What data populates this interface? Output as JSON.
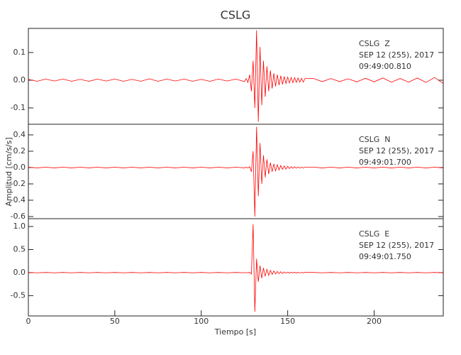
{
  "chart_data": [
    {
      "type": "line",
      "title": "CSLG",
      "color": "#ff0000",
      "annotations": [
        "CSLG  Z",
        "SEP 12 (255), 2017",
        "09:49:00.810"
      ],
      "xlim": [
        0,
        240
      ],
      "ylim": [
        -0.159,
        0.187
      ],
      "yticks": [
        -0.1,
        {
          "value": 0.0,
          "label": "0.0"
        },
        0.1
      ],
      "x": [
        0,
        5,
        10,
        15,
        20,
        25,
        30,
        35,
        40,
        45,
        50,
        55,
        60,
        65,
        70,
        75,
        80,
        85,
        90,
        95,
        100,
        105,
        110,
        115,
        120,
        125,
        126,
        127,
        128,
        129,
        130,
        131,
        132,
        133,
        134,
        135,
        136,
        137,
        138,
        139,
        140,
        141,
        142,
        143,
        144,
        145,
        146,
        147,
        148,
        149,
        150,
        151,
        152,
        153,
        154,
        155,
        156,
        157,
        158,
        159,
        160,
        165,
        170,
        175,
        180,
        185,
        190,
        195,
        200,
        205,
        210,
        215,
        220,
        225,
        230,
        235,
        240
      ],
      "values": [
        0.003,
        -0.004,
        0.004,
        -0.003,
        0.004,
        -0.004,
        0.003,
        -0.004,
        0.004,
        -0.003,
        0.004,
        -0.004,
        0.003,
        -0.004,
        0.005,
        -0.004,
        0.004,
        -0.003,
        0.004,
        -0.004,
        0.003,
        -0.004,
        0.004,
        -0.003,
        0.004,
        -0.005,
        0.006,
        -0.008,
        0.02,
        -0.04,
        0.07,
        -0.1,
        0.18,
        -0.15,
        0.12,
        -0.09,
        0.07,
        -0.06,
        0.05,
        -0.04,
        0.035,
        -0.03,
        0.025,
        -0.022,
        0.02,
        -0.018,
        0.016,
        -0.015,
        0.013,
        -0.012,
        0.011,
        -0.01,
        0.01,
        -0.009,
        0.009,
        -0.008,
        0.008,
        -0.007,
        0.007,
        -0.007,
        0.006,
        0.006,
        -0.005,
        0.006,
        -0.005,
        0.005,
        -0.006,
        0.007,
        -0.006,
        0.008,
        -0.007,
        0.006,
        -0.007,
        0.008,
        -0.008,
        0.01,
        -0.012
      ]
    },
    {
      "type": "line",
      "y_label": "Amplitud [cm/s/s]",
      "color": "#ff0000",
      "annotations": [
        "CSLG  N",
        "SEP 12 (255), 2017",
        "09:49:01.700"
      ],
      "xlim": [
        0,
        240
      ],
      "ylim": [
        -0.626,
        0.53
      ],
      "yticks": [
        -0.6,
        -0.4,
        -0.2,
        {
          "value": 0.0,
          "label": "0.0"
        },
        0.2,
        0.4
      ],
      "x": [
        0,
        5,
        10,
        15,
        20,
        25,
        30,
        35,
        40,
        45,
        50,
        55,
        60,
        65,
        70,
        75,
        80,
        85,
        90,
        95,
        100,
        105,
        110,
        115,
        120,
        125,
        126,
        127,
        128,
        129,
        130,
        131,
        132,
        133,
        134,
        135,
        136,
        137,
        138,
        139,
        140,
        141,
        142,
        143,
        144,
        145,
        146,
        147,
        148,
        149,
        150,
        151,
        152,
        153,
        154,
        155,
        156,
        157,
        158,
        159,
        160,
        165,
        170,
        175,
        180,
        185,
        190,
        195,
        200,
        205,
        210,
        215,
        220,
        225,
        230,
        235,
        240
      ],
      "values": [
        0.004,
        -0.004,
        0.004,
        -0.004,
        0.004,
        -0.004,
        0.004,
        -0.004,
        0.004,
        -0.004,
        0.004,
        -0.004,
        0.004,
        -0.004,
        0.004,
        -0.004,
        0.004,
        -0.004,
        0.004,
        -0.004,
        0.004,
        -0.004,
        0.004,
        -0.004,
        0.004,
        -0.004,
        0.005,
        -0.006,
        0.01,
        -0.05,
        0.2,
        -0.6,
        0.5,
        -0.35,
        0.3,
        -0.2,
        0.15,
        -0.12,
        0.1,
        -0.08,
        0.06,
        -0.05,
        0.045,
        -0.04,
        0.035,
        -0.03,
        0.025,
        -0.022,
        0.02,
        -0.018,
        0.015,
        -0.013,
        0.012,
        -0.01,
        0.009,
        -0.008,
        0.008,
        -0.007,
        0.006,
        -0.006,
        0.005,
        0.005,
        -0.005,
        0.005,
        -0.005,
        0.005,
        -0.005,
        0.005,
        -0.005,
        0.005,
        -0.005,
        0.005,
        -0.005,
        0.005,
        -0.005,
        0.005,
        -0.005
      ]
    },
    {
      "type": "line",
      "x_label": "Tiempo [s]",
      "color": "#ff0000",
      "annotations": [
        "CSLG  E",
        "SEP 12 (255), 2017",
        "09:49:01.750"
      ],
      "xlim": [
        0,
        240
      ],
      "ylim": [
        -0.94,
        1.17
      ],
      "xticks": [
        0,
        50,
        100,
        150,
        200
      ],
      "yticks": [
        -0.5,
        {
          "value": 0.0,
          "label": "0.0"
        },
        0.5,
        {
          "value": 1.0,
          "label": "1.0"
        }
      ],
      "x": [
        0,
        5,
        10,
        15,
        20,
        25,
        30,
        35,
        40,
        45,
        50,
        55,
        60,
        65,
        70,
        75,
        80,
        85,
        90,
        95,
        100,
        105,
        110,
        115,
        120,
        125,
        126,
        127,
        128,
        129,
        130,
        131,
        132,
        133,
        134,
        135,
        136,
        137,
        138,
        139,
        140,
        141,
        142,
        143,
        144,
        145,
        146,
        147,
        148,
        149,
        150,
        151,
        152,
        153,
        154,
        155,
        156,
        157,
        158,
        159,
        160,
        165,
        170,
        175,
        180,
        185,
        190,
        195,
        200,
        205,
        210,
        215,
        220,
        225,
        230,
        235,
        240
      ],
      "values": [
        0.004,
        -0.004,
        0.004,
        -0.004,
        0.004,
        -0.004,
        0.004,
        -0.004,
        0.004,
        -0.004,
        0.004,
        -0.004,
        0.004,
        -0.004,
        0.004,
        -0.004,
        0.004,
        -0.004,
        0.004,
        -0.004,
        0.004,
        -0.004,
        0.004,
        -0.004,
        0.004,
        -0.004,
        0.005,
        -0.006,
        0.01,
        -0.03,
        1.05,
        -0.85,
        0.3,
        -0.2,
        0.15,
        -0.12,
        0.1,
        -0.08,
        0.07,
        -0.06,
        0.05,
        -0.04,
        0.035,
        -0.03,
        0.025,
        -0.022,
        0.02,
        -0.018,
        0.015,
        -0.013,
        0.012,
        -0.01,
        0.009,
        -0.008,
        0.008,
        -0.007,
        0.006,
        -0.006,
        0.005,
        -0.005,
        0.004,
        0.004,
        -0.004,
        0.004,
        -0.004,
        0.004,
        -0.004,
        0.004,
        -0.004,
        0.004,
        -0.004,
        0.004,
        -0.004,
        0.004,
        -0.004,
        0.004,
        -0.004
      ]
    }
  ]
}
